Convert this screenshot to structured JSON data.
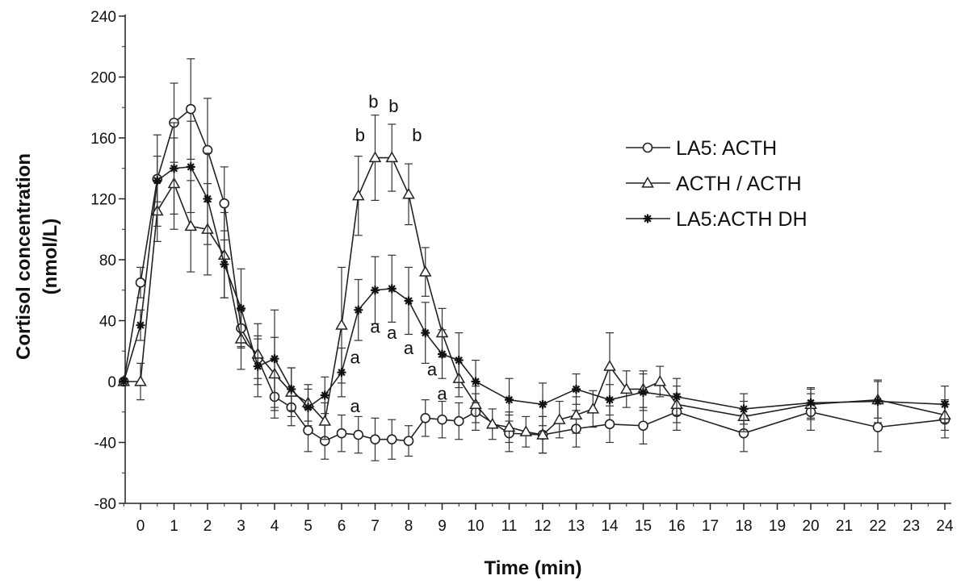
{
  "chart_data": {
    "type": "line",
    "xlabel": "Time (min)",
    "ylabel_lines": [
      "Cortisol concentration",
      "(nmol/L)"
    ],
    "xlim": [
      -0.5,
      24
    ],
    "ylim": [
      -80,
      240
    ],
    "x_ticks": [
      0,
      1,
      2,
      3,
      4,
      5,
      6,
      7,
      8,
      9,
      10,
      11,
      12,
      13,
      14,
      15,
      16,
      17,
      18,
      19,
      20,
      21,
      22,
      23,
      24
    ],
    "y_ticks": [
      -80,
      -40,
      0,
      40,
      80,
      120,
      160,
      200,
      240
    ],
    "grid": false,
    "legend_position": "right",
    "series": [
      {
        "name": "LA5: ACTH",
        "marker": "circle",
        "x": [
          -0.5,
          0,
          0.5,
          1,
          1.5,
          2,
          2.5,
          3,
          3.5,
          4,
          4.5,
          5,
          5.5,
          6,
          6.5,
          7,
          7.5,
          8,
          8.5,
          9,
          9.5,
          10,
          11,
          12,
          13,
          14,
          15,
          16,
          18,
          20,
          22,
          24
        ],
        "y": [
          0,
          65,
          133,
          170,
          179,
          152,
          117,
          35,
          15,
          -10,
          -17,
          -32,
          -39,
          -34,
          -35,
          -38,
          -38,
          -39,
          -24,
          -25,
          -26,
          -20,
          -34,
          -35,
          -31,
          -28,
          -29,
          -20,
          -34,
          -20,
          -30,
          -25
        ],
        "err": [
          0,
          10,
          15,
          26,
          33,
          34,
          24,
          12,
          13,
          14,
          12,
          14,
          12,
          12,
          12,
          14,
          13,
          10,
          12,
          12,
          12,
          12,
          12,
          12,
          12,
          12,
          12,
          12,
          12,
          12,
          16,
          12
        ]
      },
      {
        "name": "ACTH / ACTH",
        "marker": "triangle",
        "x": [
          -0.5,
          0,
          0.5,
          1,
          1.5,
          2,
          2.5,
          3,
          3.5,
          4,
          4.5,
          5,
          5.5,
          6,
          6.5,
          7,
          7.5,
          8,
          8.5,
          9,
          9.5,
          10,
          10.5,
          11,
          11.5,
          12,
          12.5,
          13,
          13.5,
          14,
          14.5,
          15,
          15.5,
          16,
          18,
          20,
          22,
          24
        ],
        "y": [
          0,
          0,
          112,
          130,
          102,
          100,
          83,
          28,
          18,
          5,
          -7,
          -14,
          -26,
          37,
          122,
          147,
          147,
          123,
          72,
          32,
          2,
          -15,
          -28,
          -30,
          -33,
          -35,
          -25,
          -22,
          -18,
          10,
          -5,
          -5,
          0,
          -15,
          -23,
          -15,
          -12,
          -22
        ],
        "err": [
          0,
          12,
          20,
          30,
          30,
          30,
          28,
          20,
          20,
          24,
          16,
          12,
          12,
          38,
          26,
          28,
          22,
          20,
          16,
          16,
          12,
          12,
          10,
          10,
          10,
          12,
          12,
          12,
          12,
          22,
          12,
          12,
          10,
          12,
          10,
          10,
          12,
          10
        ]
      },
      {
        "name": "LA5:ACTH DH",
        "marker": "star",
        "x": [
          -0.5,
          0,
          0.5,
          1,
          1.5,
          2,
          2.5,
          3,
          3.5,
          4,
          4.5,
          5,
          5.5,
          6,
          6.5,
          7,
          7.5,
          8,
          8.5,
          9,
          9.5,
          10,
          11,
          12,
          13,
          14,
          15,
          16,
          18,
          20,
          22,
          24
        ],
        "y": [
          0,
          37,
          132,
          140,
          141,
          120,
          77,
          48,
          10,
          15,
          -5,
          -17,
          -9,
          6,
          47,
          60,
          61,
          53,
          32,
          18,
          14,
          0,
          -12,
          -15,
          -5,
          -12,
          -7,
          -10,
          -18,
          -14,
          -13,
          -15
        ],
        "err": [
          0,
          10,
          30,
          30,
          30,
          30,
          22,
          26,
          20,
          32,
          14,
          12,
          12,
          16,
          20,
          22,
          22,
          22,
          20,
          16,
          18,
          14,
          14,
          14,
          10,
          10,
          12,
          12,
          10,
          10,
          14,
          12
        ]
      }
    ],
    "annotations": [
      {
        "text": "b",
        "x": 6.55,
        "y": 158
      },
      {
        "text": "b",
        "x": 6.95,
        "y": 180
      },
      {
        "text": "b",
        "x": 7.55,
        "y": 177
      },
      {
        "text": "b",
        "x": 8.25,
        "y": 158
      },
      {
        "text": "a",
        "x": 7.0,
        "y": 32
      },
      {
        "text": "a",
        "x": 7.5,
        "y": 28
      },
      {
        "text": "a",
        "x": 8.0,
        "y": 18
      },
      {
        "text": "a",
        "x": 6.4,
        "y": 12
      },
      {
        "text": "a",
        "x": 8.7,
        "y": 4
      },
      {
        "text": "a",
        "x": 9.0,
        "y": -12
      },
      {
        "text": "a",
        "x": 6.4,
        "y": -20
      }
    ]
  }
}
